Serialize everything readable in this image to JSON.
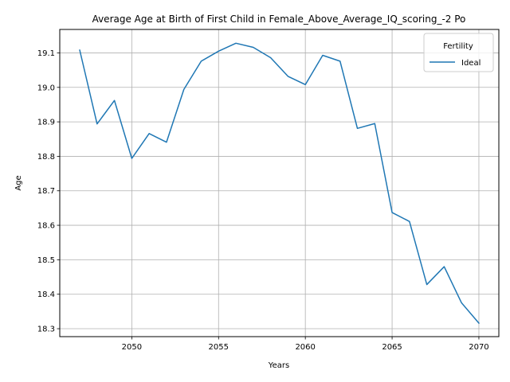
{
  "chart_data": {
    "type": "line",
    "title": "Average Age at Birth of First Child in Female_Above_Average_IQ_scoring_-2 Po",
    "xlabel": "Years",
    "ylabel": "Age",
    "xlim": [
      2045.85,
      2071.15
    ],
    "ylim": [
      18.277,
      19.168
    ],
    "xticks": [
      2050,
      2055,
      2060,
      2065,
      2070
    ],
    "yticks": [
      18.3,
      18.4,
      18.5,
      18.6,
      18.7,
      18.8,
      18.9,
      19.0,
      19.1
    ],
    "grid": true,
    "legend": {
      "title": "Fertility",
      "position": "top-right"
    },
    "series": [
      {
        "name": "Ideal",
        "color": "#1f77b4",
        "x": [
          2047,
          2048,
          2049,
          2050,
          2051,
          2052,
          2053,
          2054,
          2055,
          2056,
          2057,
          2058,
          2059,
          2060,
          2061,
          2062,
          2063,
          2064,
          2065,
          2066,
          2067,
          2068,
          2069,
          2070
        ],
        "y": [
          19.108,
          18.894,
          18.962,
          18.794,
          18.866,
          18.841,
          18.994,
          19.076,
          19.105,
          19.128,
          19.116,
          19.086,
          19.032,
          19.008,
          19.093,
          19.076,
          18.881,
          18.895,
          18.637,
          18.611,
          18.428,
          18.48,
          18.375,
          18.316
        ]
      }
    ]
  }
}
